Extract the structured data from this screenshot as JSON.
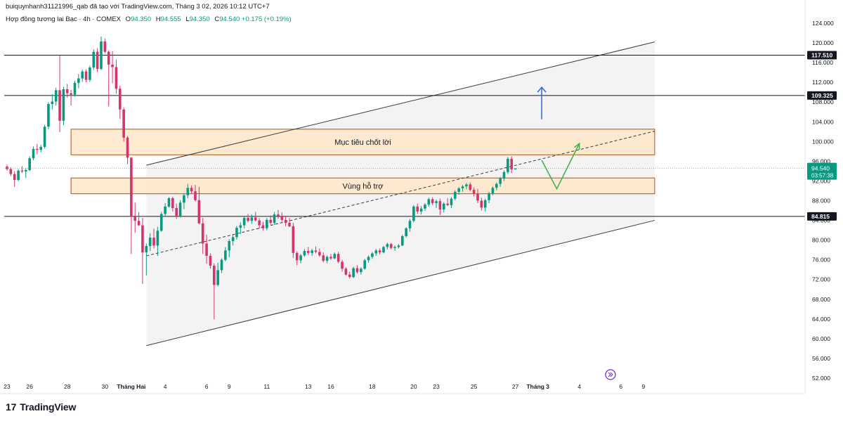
{
  "header": {
    "attribution": "buiquynhanh31121996_qab đã tạo với TradingView.com, Tháng 3 02, 2026 10:12 UTC+7",
    "symbol": "Hợp đồng tương lai Bạc · 4h · COMEX",
    "ohlc": [
      {
        "key": "O",
        "value": "94.350"
      },
      {
        "key": "H",
        "value": "94.555"
      },
      {
        "key": "L",
        "value": "94.350"
      },
      {
        "key": "C",
        "value": "94.540"
      }
    ],
    "change": "+0.175 (+0.19%)"
  },
  "brand": {
    "mark": "17",
    "name": "TradingView"
  },
  "colors": {
    "up": "#089981",
    "down": "#d6336c",
    "zone": "#fde6c8",
    "zone_border": "#b45309",
    "channel": "#ececec",
    "blue_arrow": "#3b6fd8",
    "green_arrow": "#4caf50"
  },
  "chart_data": {
    "type": "candlestick",
    "y_axis": {
      "min": 52,
      "max": 124,
      "ticks": [
        "124.000",
        "120.000",
        "116.000",
        "112.000",
        "108.000",
        "104.000",
        "100.000",
        "96.000",
        "92.000",
        "88.000",
        "84.000",
        "80.000",
        "76.000",
        "72.000",
        "68.000",
        "64.000",
        "60.000",
        "56.000",
        "52.000"
      ]
    },
    "x_axis": {
      "labels": [
        {
          "t": 0,
          "text": "23"
        },
        {
          "t": 6,
          "text": "26"
        },
        {
          "t": 16,
          "text": "28"
        },
        {
          "t": 26,
          "text": "30"
        },
        {
          "t": 33,
          "text": "Tháng Hai"
        },
        {
          "t": 42,
          "text": "4"
        },
        {
          "t": 53,
          "text": "6"
        },
        {
          "t": 59,
          "text": "9"
        },
        {
          "t": 69,
          "text": "11"
        },
        {
          "t": 80,
          "text": "13"
        },
        {
          "t": 86,
          "text": "16"
        },
        {
          "t": 97,
          "text": "18"
        },
        {
          "t": 108,
          "text": "20"
        },
        {
          "t": 114,
          "text": "23"
        },
        {
          "t": 124,
          "text": "25"
        },
        {
          "t": 135,
          "text": "27"
        },
        {
          "t": 141,
          "text": "Tháng 3"
        },
        {
          "t": 152,
          "text": "4"
        },
        {
          "t": 163,
          "text": "6"
        },
        {
          "t": 169,
          "text": "9"
        }
      ],
      "last_index": 172
    },
    "candles": [
      [
        94.9,
        95.3,
        94.1,
        94.4
      ],
      [
        94.4,
        94.8,
        93.0,
        93.4
      ],
      [
        93.4,
        94.0,
        90.8,
        92.2
      ],
      [
        92.2,
        94.4,
        91.9,
        94.1
      ],
      [
        94.1,
        95.0,
        93.6,
        93.9
      ],
      [
        93.9,
        94.6,
        92.6,
        94.2
      ],
      [
        94.2,
        97.0,
        94.0,
        96.6
      ],
      [
        96.6,
        99.0,
        96.2,
        98.5
      ],
      [
        98.5,
        99.5,
        97.4,
        98.3
      ],
      [
        98.3,
        99.3,
        97.8,
        98.9
      ],
      [
        98.9,
        103.4,
        98.6,
        103.0
      ],
      [
        103.0,
        108.0,
        102.5,
        107.6
      ],
      [
        107.6,
        109.6,
        106.5,
        108.1
      ],
      [
        108.1,
        110.9,
        107.3,
        110.4
      ],
      [
        110.4,
        117.5,
        101.9,
        104.2
      ],
      [
        104.2,
        111.1,
        103.3,
        110.6
      ],
      [
        110.6,
        111.7,
        108.9,
        109.8
      ],
      [
        109.8,
        110.5,
        107.3,
        109.5
      ],
      [
        109.5,
        112.3,
        109.1,
        111.9
      ],
      [
        111.9,
        113.7,
        110.8,
        112.8
      ],
      [
        112.8,
        114.6,
        112.1,
        114.2
      ],
      [
        114.2,
        114.6,
        112.0,
        112.5
      ],
      [
        112.5,
        115.4,
        112.1,
        115.0
      ],
      [
        115.0,
        118.7,
        114.5,
        118.2
      ],
      [
        118.2,
        118.9,
        114.1,
        114.7
      ],
      [
        114.7,
        121.3,
        114.5,
        120.3
      ],
      [
        120.3,
        120.9,
        117.9,
        118.2
      ],
      [
        118.2,
        118.5,
        107.1,
        115.6
      ],
      [
        115.6,
        118.3,
        111.8,
        115.1
      ],
      [
        115.1,
        116.6,
        109.7,
        110.7
      ],
      [
        110.7,
        111.3,
        104.6,
        106.5
      ],
      [
        106.5,
        106.9,
        100.0,
        100.8
      ],
      [
        100.8,
        101.1,
        95.4,
        96.7
      ],
      [
        96.7,
        96.9,
        77.2,
        84.8
      ],
      [
        84.8,
        87.6,
        81.5,
        83.9
      ],
      [
        83.9,
        85.7,
        82.9,
        83.0
      ],
      [
        83.0,
        84.5,
        71.1,
        77.5
      ],
      [
        77.5,
        79.3,
        72.8,
        78.8
      ],
      [
        78.8,
        81.4,
        77.8,
        80.5
      ],
      [
        80.5,
        82.3,
        78.3,
        78.9
      ],
      [
        78.9,
        82.7,
        76.8,
        81.9
      ],
      [
        81.9,
        85.7,
        81.7,
        85.3
      ],
      [
        85.3,
        87.5,
        84.8,
        86.8
      ],
      [
        86.8,
        88.7,
        86.6,
        88.5
      ],
      [
        88.5,
        88.8,
        85.8,
        86.5
      ],
      [
        86.5,
        87.4,
        84.3,
        84.8
      ],
      [
        84.8,
        88.1,
        84.6,
        87.6
      ],
      [
        87.6,
        89.5,
        86.3,
        89.1
      ],
      [
        89.1,
        91.4,
        88.5,
        90.6
      ],
      [
        90.6,
        91.1,
        89.3,
        89.9
      ],
      [
        89.9,
        91.2,
        87.8,
        88.1
      ],
      [
        88.1,
        90.8,
        83.2,
        83.4
      ],
      [
        83.4,
        84.5,
        77.2,
        79.3
      ],
      [
        79.3,
        81.1,
        75.2,
        76.8
      ],
      [
        76.8,
        77.3,
        74.2,
        74.8
      ],
      [
        74.8,
        75.3,
        63.9,
        70.9
      ],
      [
        70.9,
        75.4,
        70.6,
        73.9
      ],
      [
        73.9,
        76.3,
        73.3,
        76.0
      ],
      [
        76.0,
        78.6,
        75.7,
        77.9
      ],
      [
        77.9,
        80.2,
        76.5,
        79.8
      ],
      [
        79.8,
        81.2,
        78.9,
        80.6
      ],
      [
        80.6,
        82.9,
        80.1,
        82.5
      ],
      [
        82.5,
        83.6,
        81.2,
        83.0
      ],
      [
        83.0,
        84.7,
        82.4,
        84.5
      ],
      [
        84.5,
        85.3,
        83.6,
        83.9
      ],
      [
        83.9,
        85.2,
        83.3,
        84.6
      ],
      [
        84.6,
        85.7,
        83.8,
        84.0
      ],
      [
        84.0,
        84.5,
        82.3,
        83.0
      ],
      [
        83.0,
        83.7,
        81.9,
        82.4
      ],
      [
        82.4,
        84.5,
        82.0,
        84.1
      ],
      [
        84.1,
        85.0,
        83.1,
        83.5
      ],
      [
        83.5,
        85.7,
        83.1,
        85.2
      ],
      [
        85.2,
        86.1,
        84.3,
        84.9
      ],
      [
        84.9,
        85.6,
        83.7,
        84.1
      ],
      [
        84.1,
        84.8,
        82.8,
        83.5
      ],
      [
        83.5,
        84.5,
        82.6,
        82.8
      ],
      [
        82.8,
        83.5,
        76.4,
        77.4
      ],
      [
        77.4,
        77.7,
        74.9,
        75.9
      ],
      [
        75.9,
        77.2,
        75.3,
        76.9
      ],
      [
        76.9,
        78.2,
        76.6,
        77.8
      ],
      [
        77.8,
        78.6,
        77.0,
        77.4
      ],
      [
        77.4,
        78.2,
        76.8,
        77.9
      ],
      [
        77.9,
        78.7,
        77.3,
        77.6
      ],
      [
        77.6,
        78.3,
        76.6,
        76.9
      ],
      [
        76.9,
        77.5,
        75.5,
        75.8
      ],
      [
        75.8,
        76.9,
        75.3,
        76.6
      ],
      [
        76.6,
        77.2,
        76.0,
        76.3
      ],
      [
        76.3,
        77.5,
        76.1,
        77.2
      ],
      [
        77.2,
        77.6,
        75.3,
        75.6
      ],
      [
        75.6,
        76.0,
        73.6,
        74.2
      ],
      [
        74.2,
        74.5,
        72.8,
        73.0
      ],
      [
        73.0,
        73.6,
        72.2,
        72.5
      ],
      [
        72.5,
        74.6,
        72.3,
        74.3
      ],
      [
        74.3,
        74.9,
        73.2,
        73.5
      ],
      [
        73.5,
        74.5,
        73.0,
        74.2
      ],
      [
        74.2,
        76.2,
        74.0,
        75.9
      ],
      [
        75.9,
        76.9,
        75.4,
        76.6
      ],
      [
        76.6,
        77.6,
        76.2,
        77.3
      ],
      [
        77.3,
        78.2,
        76.8,
        77.9
      ],
      [
        77.9,
        78.3,
        77.1,
        77.5
      ],
      [
        77.5,
        78.8,
        77.3,
        78.6
      ],
      [
        78.6,
        79.5,
        78.1,
        79.2
      ],
      [
        79.2,
        79.4,
        78.1,
        78.4
      ],
      [
        78.4,
        78.9,
        77.8,
        78.6
      ],
      [
        78.6,
        79.2,
        78.3,
        78.9
      ],
      [
        78.9,
        81.1,
        78.8,
        80.8
      ],
      [
        80.8,
        82.6,
        80.5,
        82.4
      ],
      [
        82.4,
        84.3,
        81.7,
        83.9
      ],
      [
        83.9,
        87.1,
        83.6,
        86.8
      ],
      [
        86.8,
        87.4,
        85.3,
        85.8
      ],
      [
        85.8,
        86.9,
        85.2,
        86.4
      ],
      [
        86.4,
        87.5,
        85.9,
        87.2
      ],
      [
        87.2,
        88.6,
        86.8,
        88.3
      ],
      [
        88.3,
        88.7,
        87.1,
        87.5
      ],
      [
        87.5,
        88.2,
        86.5,
        87.9
      ],
      [
        87.9,
        88.4,
        85.1,
        86.2
      ],
      [
        86.2,
        87.7,
        85.6,
        87.4
      ],
      [
        87.4,
        88.5,
        86.9,
        87.1
      ],
      [
        87.1,
        88.7,
        86.5,
        88.4
      ],
      [
        88.4,
        90.1,
        88.1,
        89.8
      ],
      [
        89.8,
        90.8,
        89.2,
        90.5
      ],
      [
        90.5,
        91.2,
        89.8,
        90.9
      ],
      [
        90.9,
        91.6,
        90.3,
        91.3
      ],
      [
        91.3,
        91.7,
        89.9,
        90.2
      ],
      [
        90.2,
        90.7,
        88.9,
        89.4
      ],
      [
        89.4,
        90.4,
        87.5,
        88.0
      ],
      [
        88.0,
        88.6,
        86.0,
        86.6
      ],
      [
        86.6,
        88.4,
        85.8,
        88.1
      ],
      [
        88.1,
        89.8,
        87.5,
        89.5
      ],
      [
        89.5,
        90.9,
        89.1,
        90.6
      ],
      [
        90.6,
        91.7,
        90.1,
        91.4
      ],
      [
        91.4,
        92.8,
        90.8,
        92.5
      ],
      [
        92.5,
        94.1,
        92.0,
        93.8
      ],
      [
        93.8,
        96.9,
        93.4,
        96.5
      ],
      [
        96.5,
        97.0,
        93.6,
        94.35
      ],
      [
        94.35,
        94.555,
        94.35,
        94.54
      ]
    ],
    "horizontal_levels": [
      {
        "value": 117.51,
        "label": "117.510"
      },
      {
        "value": 109.325,
        "label": "109.325"
      },
      {
        "value": 84.815,
        "label": "84.815"
      }
    ],
    "last_price": {
      "value": 94.54,
      "label": "94.540",
      "countdown": "03:57:38"
    },
    "zones": [
      {
        "name": "Mục tiêu chốt lời",
        "from_index": 17,
        "to_index": 172,
        "low": 97.3,
        "high": 102.5
      },
      {
        "name": "Vùng hỗ trợ",
        "from_index": 17,
        "to_index": 172,
        "low": 89.4,
        "high": 92.6
      }
    ],
    "channel": {
      "upper": {
        "from": [
          37,
          95.2
        ],
        "to": [
          172,
          120.2
        ]
      },
      "lower": {
        "from": [
          37,
          58.6
        ],
        "to": [
          172,
          84.0
        ]
      },
      "mid": {
        "from": [
          37,
          76.8
        ],
        "to": [
          172,
          102.1
        ]
      }
    },
    "arrows": {
      "blue_up": {
        "index": 142,
        "from": 104.5,
        "to": 111.0
      },
      "green_path": [
        [
          142,
          96.2
        ],
        [
          146,
          90.4
        ],
        [
          152,
          99.6
        ]
      ]
    }
  }
}
